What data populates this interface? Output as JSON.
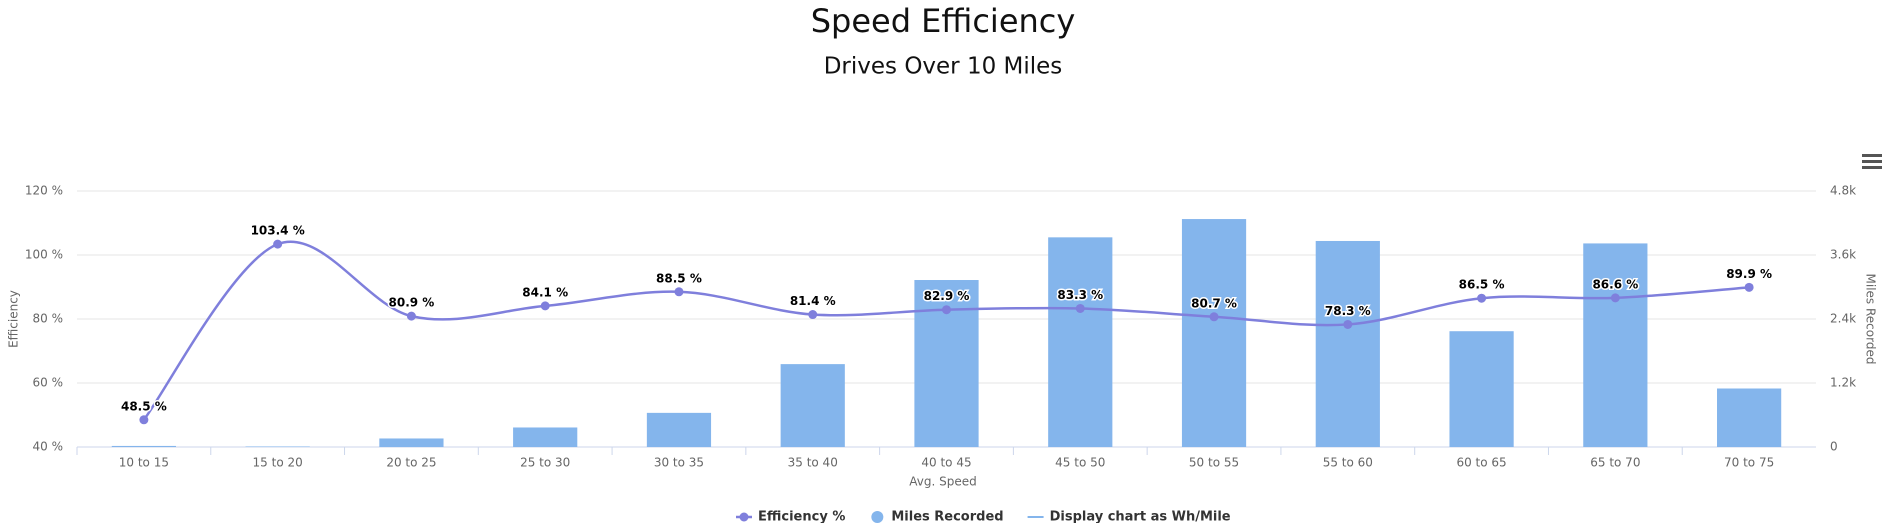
{
  "chart_data": {
    "type": "bar-line",
    "title": "Speed Efficiency",
    "subtitle": "Drives Over 10 Miles",
    "x_label": "Avg. Speed",
    "y_label": "Efficiency",
    "y2_label": "Miles Recorded",
    "categories": [
      "10 to 15",
      "15 to 20",
      "20 to 25",
      "25 to 30",
      "30 to 35",
      "35 to 40",
      "40 to 45",
      "45 to 50",
      "50 to 55",
      "55 to 60",
      "60 to 65",
      "65 to 70",
      "70 to 75"
    ],
    "series": [
      {
        "name": "Efficiency %",
        "type": "line",
        "color": "#7f7fdc",
        "values": [
          48.5,
          103.4,
          80.9,
          84.1,
          88.5,
          81.4,
          82.9,
          83.3,
          80.7,
          78.3,
          86.5,
          86.6,
          89.9
        ],
        "value_labels": [
          "48.5 %",
          "103.4 %",
          "80.9 %",
          "84.1 %",
          "88.5 %",
          "81.4 %",
          "82.9 %",
          "83.3 %",
          "80.7 %",
          "78.3 %",
          "86.5 %",
          "86.6 %",
          "89.9 %"
        ]
      },
      {
        "name": "Miles Recorded",
        "type": "bar",
        "axis": "y2",
        "color": "#84b5ec",
        "values": [
          20,
          10,
          160,
          366,
          640,
          1554,
          3131,
          3931,
          4274,
          3863,
          2171,
          3817,
          1097
        ]
      }
    ],
    "legend_toggle": {
      "name": "Display chart as Wh/Mile",
      "color": "#84b5ec"
    },
    "ylim": [
      40,
      120
    ],
    "yticks": [
      {
        "value": 40,
        "label": "40 %"
      },
      {
        "value": 60,
        "label": "60 %"
      },
      {
        "value": 80,
        "label": "80 %"
      },
      {
        "value": 100,
        "label": "100 %"
      },
      {
        "value": 120,
        "label": "120 %"
      }
    ],
    "y2lim": [
      0,
      4800
    ],
    "y2ticks": [
      0,
      {
        "value": 1200,
        "label": "1.2k"
      },
      {
        "value": 2400,
        "label": "2.4k"
      },
      {
        "value": 3600,
        "label": "3.6k"
      },
      {
        "value": 4800,
        "label": "4.8k"
      }
    ],
    "grid": true
  }
}
